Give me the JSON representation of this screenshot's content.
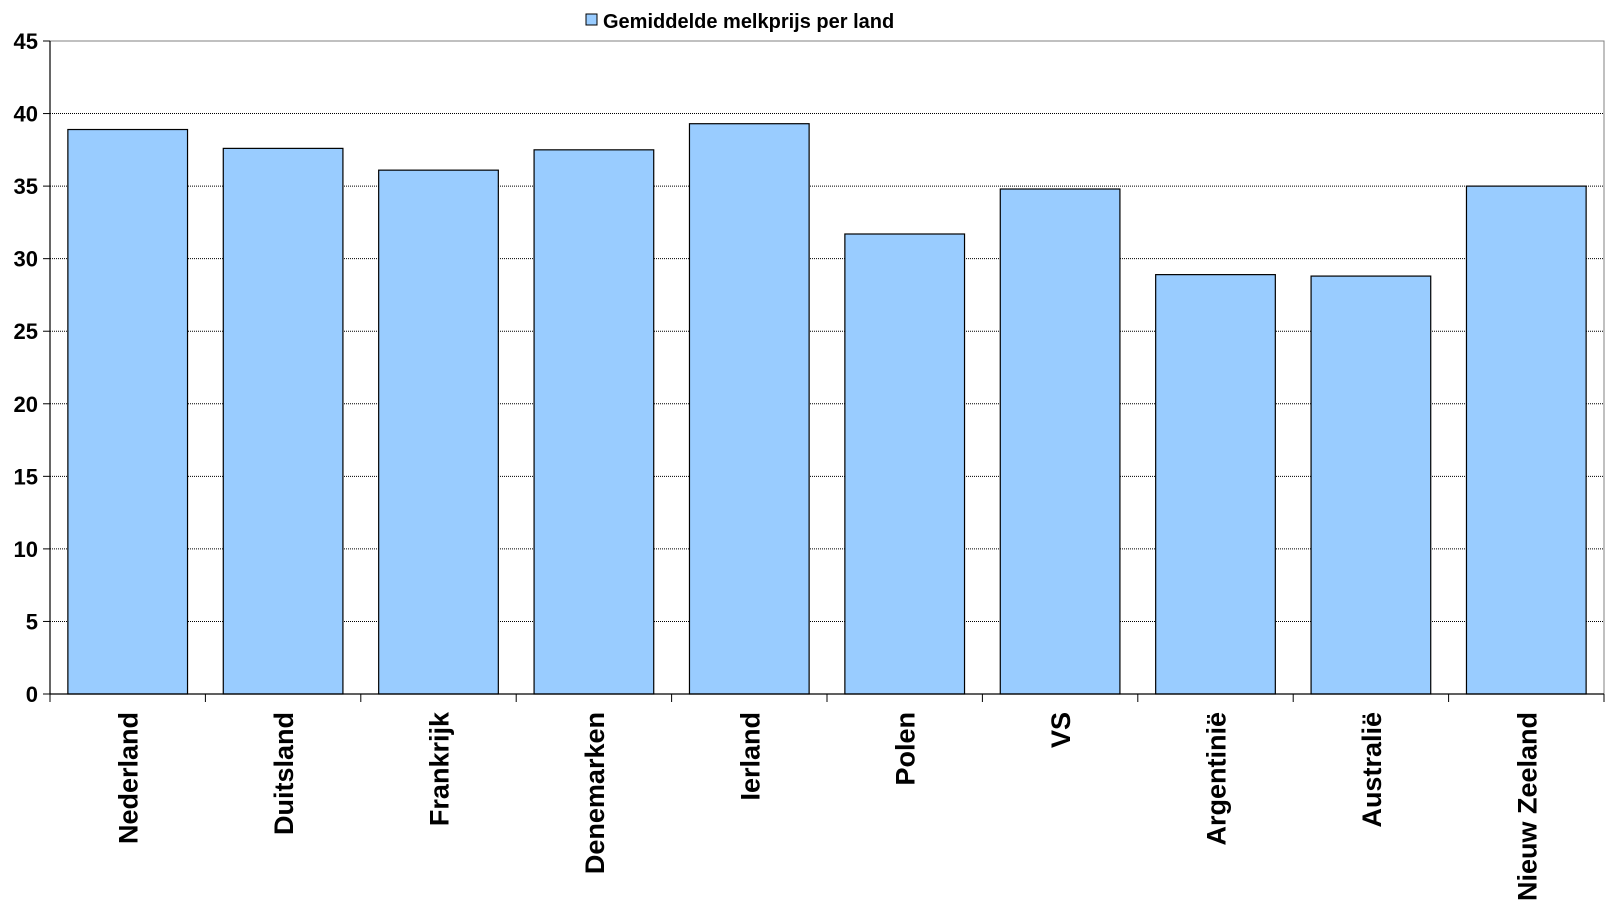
{
  "chart_data": {
    "type": "bar",
    "categories": [
      "Nederland",
      "Duitsland",
      "Frankrijk",
      "Denemarken",
      "Ierland",
      "Polen",
      "VS",
      "Argentinië",
      "Australië",
      "Nieuw Zeeland"
    ],
    "series": [
      {
        "name": "Gemiddelde melkprijs per land",
        "values": [
          38.9,
          37.6,
          36.1,
          37.5,
          39.3,
          31.7,
          34.8,
          28.9,
          28.8,
          35.0
        ],
        "color": "#99ccff"
      }
    ],
    "ylim": [
      0,
      45
    ],
    "yticks": [
      0,
      5,
      10,
      15,
      20,
      25,
      30,
      35,
      40,
      45
    ],
    "grid": true,
    "legend_position": "top-center"
  }
}
